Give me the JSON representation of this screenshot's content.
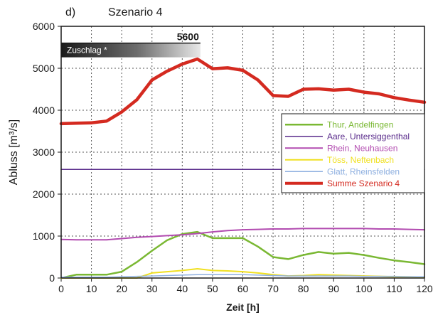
{
  "panel_label": "d)",
  "chart_data": {
    "type": "line",
    "title": "Szenario 4",
    "xlabel": "Zeit [h]",
    "ylabel": "Abluss [m³/s]",
    "xlim": [
      0,
      120
    ],
    "ylim": [
      0,
      6000
    ],
    "xticks": [
      0,
      10,
      20,
      30,
      40,
      50,
      60,
      70,
      80,
      90,
      100,
      110,
      120
    ],
    "yticks": [
      0,
      1000,
      2000,
      3000,
      4000,
      5000,
      6000
    ],
    "grid": true,
    "legend_position": "right",
    "x": [
      0,
      5,
      10,
      15,
      20,
      25,
      30,
      35,
      40,
      45,
      50,
      55,
      60,
      65,
      70,
      75,
      80,
      85,
      90,
      95,
      100,
      105,
      110,
      115,
      120
    ],
    "series": [
      {
        "name": "Thur, Andelfingen",
        "color": "#7ab833",
        "width": 2.5,
        "in_legend": true,
        "values": [
          0,
          80,
          80,
          80,
          150,
          380,
          650,
          900,
          1050,
          1100,
          950,
          950,
          950,
          750,
          500,
          450,
          550,
          620,
          580,
          600,
          550,
          480,
          420,
          380,
          330
        ]
      },
      {
        "name": "Aare, Untersiggenthal",
        "color": "#5b2d8c",
        "width": 1.5,
        "in_legend": true,
        "values": [
          2590,
          2590,
          2590,
          2590,
          2590,
          2590,
          2590,
          2590,
          2590,
          2590,
          2590,
          2590,
          2590,
          2590,
          2590,
          2590,
          2590,
          2590,
          2590,
          2590,
          2590,
          2590,
          2590,
          2590,
          2590
        ]
      },
      {
        "name": "Rhein, Neuhausen",
        "color": "#b24bb0",
        "width": 2,
        "in_legend": true,
        "values": [
          920,
          910,
          910,
          910,
          940,
          970,
          990,
          1010,
          1030,
          1060,
          1100,
          1130,
          1150,
          1160,
          1170,
          1170,
          1180,
          1180,
          1180,
          1180,
          1180,
          1170,
          1170,
          1160,
          1150
        ]
      },
      {
        "name": "Töss, Neftenbach",
        "color": "#f0e020",
        "width": 2,
        "in_legend": true,
        "values": [
          0,
          0,
          0,
          0,
          0,
          0,
          120,
          150,
          180,
          220,
          180,
          170,
          150,
          120,
          80,
          50,
          60,
          80,
          70,
          60,
          50,
          40,
          30,
          30,
          20
        ]
      },
      {
        "name": "Glatt, Rheinsfelden",
        "color": "#8fb0e0",
        "width": 1.5,
        "in_legend": true,
        "values": [
          20,
          20,
          20,
          20,
          30,
          40,
          50,
          60,
          70,
          80,
          80,
          80,
          80,
          70,
          60,
          50,
          50,
          50,
          50,
          50,
          40,
          40,
          40,
          30,
          30
        ]
      },
      {
        "name": "Summe Szenario 4",
        "color": "#d42a20",
        "width": 4.5,
        "in_legend": true,
        "values": [
          3680,
          3690,
          3700,
          3740,
          3960,
          4250,
          4720,
          4930,
          5100,
          5220,
          4990,
          5010,
          4950,
          4720,
          4350,
          4330,
          4500,
          4510,
          4480,
          4500,
          4430,
          4390,
          4300,
          4240,
          4190
        ]
      }
    ],
    "annotation": {
      "label": "Zuschlag *",
      "value": "5600",
      "y": 5600,
      "x_start": 0,
      "x_end": 46
    }
  }
}
